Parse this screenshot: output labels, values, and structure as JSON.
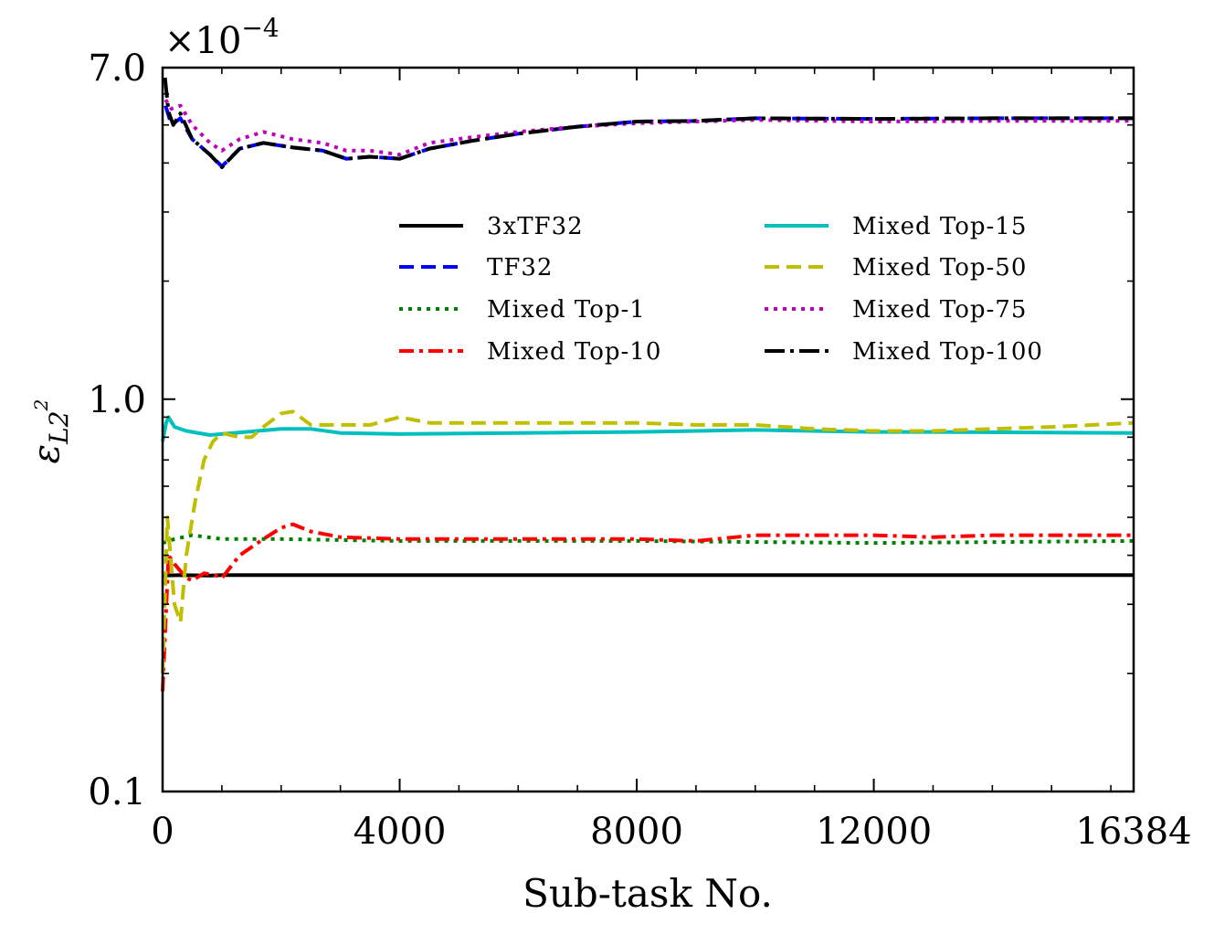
{
  "chart_data": {
    "type": "line",
    "xlabel": "Sub-task No.",
    "ylabel": "ε",
    "ylabel_sub": "L2",
    "ylabel_sup": "2",
    "y_multiplier": "×10",
    "y_multiplier_exp": "−4",
    "yscale": "log",
    "xlim": [
      0,
      16384
    ],
    "ylim": [
      0.1,
      7.0
    ],
    "x_ticks": [
      0,
      4000,
      8000,
      12000,
      16384
    ],
    "x_tick_labels": [
      "0",
      "4000",
      "8000",
      "12000",
      "16384"
    ],
    "y_ticks": [
      0.1,
      1.0,
      7.0
    ],
    "y_tick_labels": [
      "0.1",
      "1.0",
      "7.0"
    ],
    "legend_position": "center",
    "series": [
      {
        "name": "3xTF32",
        "color": "#000000",
        "dash": "solid",
        "points": [
          [
            0,
            0.355
          ],
          [
            300,
            0.356
          ],
          [
            800,
            0.355
          ],
          [
            1000,
            0.356
          ],
          [
            4000,
            0.356
          ],
          [
            8000,
            0.356
          ],
          [
            12000,
            0.356
          ],
          [
            16384,
            0.356
          ]
        ]
      },
      {
        "name": "TF32",
        "color": "#0000ff",
        "dash": "dashed",
        "points": [
          [
            50,
            5.6
          ],
          [
            150,
            5.0
          ],
          [
            300,
            5.2
          ],
          [
            500,
            4.6
          ],
          [
            800,
            4.2
          ],
          [
            1000,
            3.92
          ],
          [
            1300,
            4.35
          ],
          [
            1700,
            4.5
          ],
          [
            2200,
            4.38
          ],
          [
            2700,
            4.3
          ],
          [
            3100,
            4.1
          ],
          [
            3500,
            4.15
          ],
          [
            4000,
            4.1
          ],
          [
            4500,
            4.35
          ],
          [
            5200,
            4.55
          ],
          [
            6000,
            4.75
          ],
          [
            7000,
            4.95
          ],
          [
            8000,
            5.1
          ],
          [
            9000,
            5.12
          ],
          [
            10000,
            5.2
          ],
          [
            12000,
            5.18
          ],
          [
            14000,
            5.2
          ],
          [
            16384,
            5.2
          ]
        ]
      },
      {
        "name": "Mixed Top-1",
        "color": "#008000",
        "dash": "dotted",
        "points": [
          [
            0,
            0.43
          ],
          [
            200,
            0.44
          ],
          [
            500,
            0.45
          ],
          [
            1000,
            0.44
          ],
          [
            2000,
            0.44
          ],
          [
            4000,
            0.435
          ],
          [
            8000,
            0.435
          ],
          [
            12000,
            0.43
          ],
          [
            16384,
            0.435
          ]
        ]
      },
      {
        "name": "Mixed Top-10",
        "color": "#ff0000",
        "dash": "dashdot",
        "points": [
          [
            0,
            0.18
          ],
          [
            100,
            0.4
          ],
          [
            200,
            0.38
          ],
          [
            400,
            0.35
          ],
          [
            500,
            0.345
          ],
          [
            700,
            0.36
          ],
          [
            900,
            0.355
          ],
          [
            1000,
            0.35
          ],
          [
            1300,
            0.4
          ],
          [
            1700,
            0.44
          ],
          [
            2000,
            0.47
          ],
          [
            2200,
            0.48
          ],
          [
            2500,
            0.46
          ],
          [
            3000,
            0.445
          ],
          [
            4000,
            0.44
          ],
          [
            5000,
            0.44
          ],
          [
            6000,
            0.44
          ],
          [
            7000,
            0.44
          ],
          [
            8000,
            0.44
          ],
          [
            9000,
            0.435
          ],
          [
            10000,
            0.45
          ],
          [
            11000,
            0.45
          ],
          [
            12000,
            0.45
          ],
          [
            13000,
            0.445
          ],
          [
            14000,
            0.45
          ],
          [
            15000,
            0.45
          ],
          [
            16384,
            0.45
          ]
        ]
      },
      {
        "name": "Mixed Top-15",
        "color": "#00bfbf",
        "dash": "solid",
        "points": [
          [
            0,
            0.78
          ],
          [
            60,
            0.87
          ],
          [
            100,
            0.9
          ],
          [
            200,
            0.85
          ],
          [
            400,
            0.83
          ],
          [
            800,
            0.81
          ],
          [
            1200,
            0.82
          ],
          [
            2000,
            0.84
          ],
          [
            2500,
            0.84
          ],
          [
            3000,
            0.82
          ],
          [
            4000,
            0.815
          ],
          [
            6000,
            0.82
          ],
          [
            8000,
            0.825
          ],
          [
            10000,
            0.835
          ],
          [
            12000,
            0.825
          ],
          [
            13000,
            0.825
          ],
          [
            16384,
            0.82
          ]
        ]
      },
      {
        "name": "Mixed Top-50",
        "color": "#bfbf00",
        "dash": "dashed",
        "points": [
          [
            0,
            0.2
          ],
          [
            80,
            0.5
          ],
          [
            200,
            0.3
          ],
          [
            300,
            0.27
          ],
          [
            400,
            0.4
          ],
          [
            550,
            0.55
          ],
          [
            700,
            0.7
          ],
          [
            850,
            0.78
          ],
          [
            1000,
            0.82
          ],
          [
            1300,
            0.8
          ],
          [
            1500,
            0.8
          ],
          [
            1700,
            0.85
          ],
          [
            2000,
            0.92
          ],
          [
            2200,
            0.93
          ],
          [
            2500,
            0.86
          ],
          [
            3000,
            0.86
          ],
          [
            3500,
            0.86
          ],
          [
            4000,
            0.9
          ],
          [
            4500,
            0.87
          ],
          [
            5000,
            0.87
          ],
          [
            6000,
            0.87
          ],
          [
            7000,
            0.87
          ],
          [
            8000,
            0.87
          ],
          [
            9000,
            0.86
          ],
          [
            10000,
            0.86
          ],
          [
            11000,
            0.84
          ],
          [
            12000,
            0.83
          ],
          [
            13000,
            0.83
          ],
          [
            14000,
            0.84
          ],
          [
            15000,
            0.85
          ],
          [
            16384,
            0.87
          ]
        ]
      },
      {
        "name": "Mixed Top-75",
        "color": "#bf00bf",
        "dash": "dotted",
        "points": [
          [
            50,
            5.8
          ],
          [
            150,
            5.5
          ],
          [
            300,
            5.6
          ],
          [
            500,
            5.0
          ],
          [
            800,
            4.5
          ],
          [
            1000,
            4.3
          ],
          [
            1300,
            4.6
          ],
          [
            1700,
            4.8
          ],
          [
            2200,
            4.6
          ],
          [
            2700,
            4.5
          ],
          [
            3100,
            4.3
          ],
          [
            3500,
            4.3
          ],
          [
            4000,
            4.2
          ],
          [
            4500,
            4.5
          ],
          [
            5200,
            4.65
          ],
          [
            6000,
            4.8
          ],
          [
            7000,
            4.95
          ],
          [
            8000,
            5.05
          ],
          [
            9000,
            5.1
          ],
          [
            10000,
            5.15
          ],
          [
            12000,
            5.1
          ],
          [
            14000,
            5.12
          ],
          [
            16384,
            5.12
          ]
        ]
      },
      {
        "name": "Mixed Top-100",
        "color": "#000000",
        "dash": "longdashdot",
        "points": [
          [
            40,
            6.6
          ],
          [
            100,
            5.4
          ],
          [
            180,
            5.0
          ],
          [
            300,
            5.35
          ],
          [
            500,
            4.6
          ],
          [
            800,
            4.2
          ],
          [
            1000,
            3.9
          ],
          [
            1300,
            4.35
          ],
          [
            1700,
            4.5
          ],
          [
            2200,
            4.38
          ],
          [
            2700,
            4.3
          ],
          [
            3100,
            4.1
          ],
          [
            3500,
            4.15
          ],
          [
            4000,
            4.1
          ],
          [
            4500,
            4.35
          ],
          [
            5200,
            4.55
          ],
          [
            6000,
            4.75
          ],
          [
            7000,
            4.95
          ],
          [
            8000,
            5.1
          ],
          [
            9000,
            5.12
          ],
          [
            10000,
            5.2
          ],
          [
            12000,
            5.18
          ],
          [
            14000,
            5.2
          ],
          [
            16384,
            5.2
          ]
        ]
      }
    ]
  }
}
